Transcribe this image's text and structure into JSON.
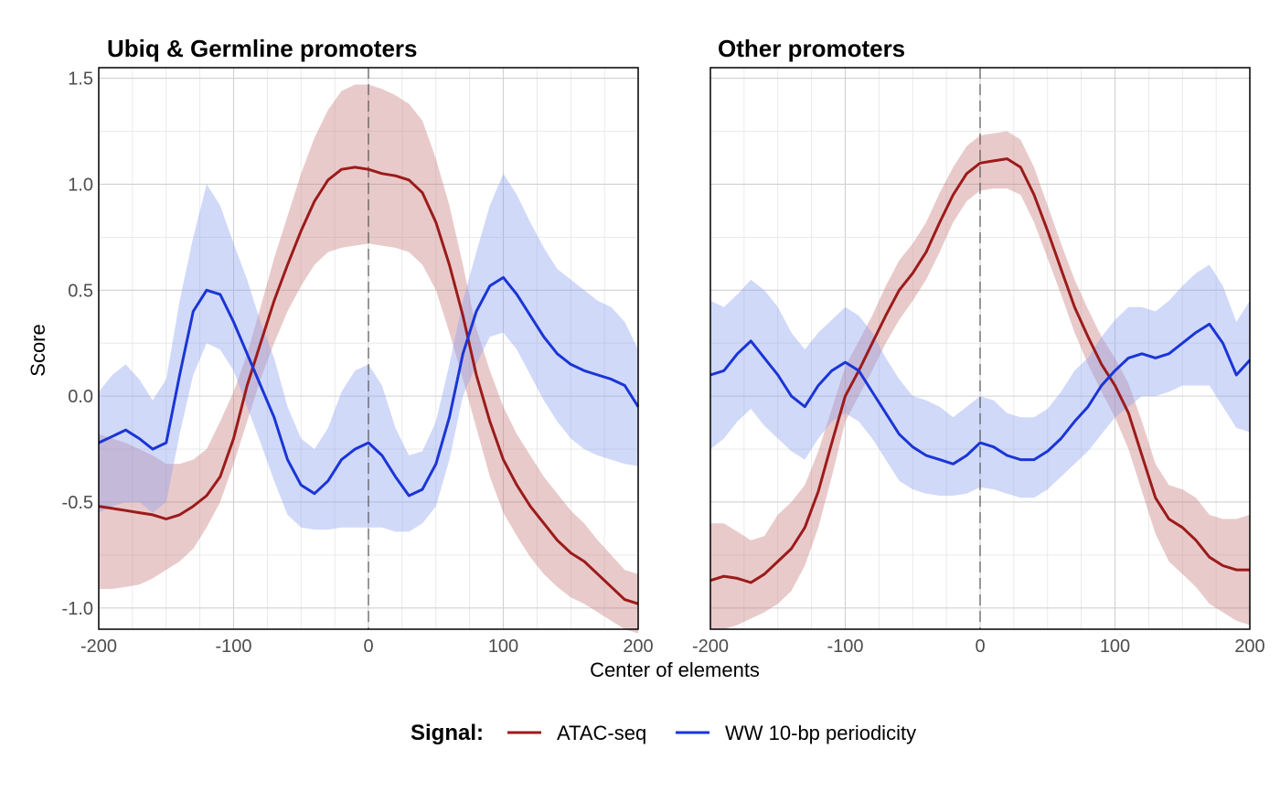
{
  "colors": {
    "atac_line": "#9b1b1b",
    "atac_band": "#c97a7a",
    "ww_line": "#1a35d6",
    "ww_band": "#8da0ef"
  },
  "chart_data": {
    "type": "line",
    "xlabel": "Center of elements",
    "ylabel": "Score",
    "xlim": [
      -200,
      200
    ],
    "ylim": [
      -1.1,
      1.55
    ],
    "x_ticks": [
      -200,
      -100,
      0,
      100,
      200
    ],
    "y_ticks": [
      -1.0,
      -0.5,
      0.0,
      0.5,
      1.0,
      1.5
    ],
    "y_tick_labels": [
      "-1.0",
      "-0.5",
      "0.0",
      "0.5",
      "1.0",
      "1.5"
    ],
    "grid": true,
    "vertical_reference_line": 0,
    "legend": {
      "title": "Signal:",
      "position": "bottom",
      "entries": [
        "ATAC-seq",
        "WW 10-bp periodicity"
      ]
    },
    "panels": [
      {
        "title": "Ubiq & Germline promoters",
        "series": [
          {
            "name": "ATAC-seq",
            "x": [
              -200,
              -190,
              -180,
              -170,
              -160,
              -150,
              -140,
              -130,
              -120,
              -110,
              -100,
              -90,
              -80,
              -70,
              -60,
              -50,
              -40,
              -30,
              -20,
              -10,
              0,
              10,
              20,
              30,
              40,
              50,
              60,
              70,
              80,
              90,
              100,
              110,
              120,
              130,
              140,
              150,
              160,
              170,
              180,
              190,
              200
            ],
            "y": [
              -0.52,
              -0.53,
              -0.54,
              -0.55,
              -0.56,
              -0.58,
              -0.56,
              -0.52,
              -0.47,
              -0.38,
              -0.2,
              0.05,
              0.25,
              0.45,
              0.62,
              0.78,
              0.92,
              1.02,
              1.07,
              1.08,
              1.07,
              1.05,
              1.04,
              1.02,
              0.96,
              0.82,
              0.62,
              0.38,
              0.1,
              -0.12,
              -0.3,
              -0.42,
              -0.52,
              -0.6,
              -0.68,
              -0.74,
              -0.78,
              -0.84,
              -0.9,
              -0.96,
              -0.98
            ],
            "lower": [
              -0.91,
              -0.91,
              -0.9,
              -0.89,
              -0.86,
              -0.82,
              -0.78,
              -0.72,
              -0.62,
              -0.5,
              -0.32,
              -0.12,
              0.08,
              0.25,
              0.4,
              0.52,
              0.62,
              0.68,
              0.7,
              0.71,
              0.72,
              0.71,
              0.7,
              0.68,
              0.62,
              0.5,
              0.3,
              0.08,
              -0.15,
              -0.38,
              -0.55,
              -0.66,
              -0.76,
              -0.84,
              -0.9,
              -0.95,
              -0.98,
              -1.02,
              -1.06,
              -1.1,
              -1.12
            ],
            "upper": [
              -0.18,
              -0.2,
              -0.22,
              -0.25,
              -0.28,
              -0.32,
              -0.32,
              -0.3,
              -0.25,
              -0.12,
              0.02,
              0.2,
              0.42,
              0.65,
              0.85,
              1.05,
              1.22,
              1.35,
              1.44,
              1.47,
              1.47,
              1.45,
              1.42,
              1.38,
              1.3,
              1.12,
              0.9,
              0.62,
              0.32,
              0.12,
              -0.05,
              -0.18,
              -0.28,
              -0.38,
              -0.46,
              -0.54,
              -0.6,
              -0.68,
              -0.75,
              -0.82,
              -0.84
            ]
          },
          {
            "name": "WW 10-bp periodicity",
            "x": [
              -200,
              -190,
              -180,
              -170,
              -160,
              -150,
              -140,
              -130,
              -120,
              -110,
              -100,
              -90,
              -80,
              -70,
              -60,
              -50,
              -40,
              -30,
              -20,
              -10,
              0,
              10,
              20,
              30,
              40,
              50,
              60,
              70,
              80,
              90,
              100,
              110,
              120,
              130,
              140,
              150,
              160,
              170,
              180,
              190,
              200
            ],
            "y": [
              -0.22,
              -0.19,
              -0.16,
              -0.2,
              -0.25,
              -0.22,
              0.1,
              0.4,
              0.5,
              0.48,
              0.35,
              0.2,
              0.05,
              -0.1,
              -0.3,
              -0.42,
              -0.46,
              -0.4,
              -0.3,
              -0.25,
              -0.22,
              -0.28,
              -0.38,
              -0.47,
              -0.44,
              -0.32,
              -0.1,
              0.2,
              0.4,
              0.52,
              0.56,
              0.48,
              0.38,
              0.28,
              0.2,
              0.15,
              0.12,
              0.1,
              0.08,
              0.05,
              -0.05
            ],
            "lower": [
              -0.55,
              -0.52,
              -0.5,
              -0.5,
              -0.55,
              -0.5,
              -0.18,
              0.1,
              0.25,
              0.22,
              0.12,
              -0.05,
              -0.22,
              -0.4,
              -0.56,
              -0.62,
              -0.63,
              -0.63,
              -0.62,
              -0.62,
              -0.62,
              -0.62,
              -0.64,
              -0.64,
              -0.6,
              -0.52,
              -0.3,
              0.0,
              0.15,
              0.28,
              0.3,
              0.22,
              0.1,
              -0.02,
              -0.12,
              -0.2,
              -0.25,
              -0.28,
              -0.3,
              -0.32,
              -0.33
            ],
            "upper": [
              0.02,
              0.1,
              0.15,
              0.08,
              -0.02,
              0.08,
              0.45,
              0.75,
              1.0,
              0.9,
              0.72,
              0.55,
              0.35,
              0.18,
              -0.05,
              -0.2,
              -0.25,
              -0.15,
              0.02,
              0.12,
              0.15,
              0.05,
              -0.15,
              -0.28,
              -0.26,
              -0.12,
              0.15,
              0.45,
              0.68,
              0.9,
              1.05,
              0.95,
              0.82,
              0.7,
              0.6,
              0.55,
              0.5,
              0.45,
              0.42,
              0.35,
              0.22
            ]
          }
        ]
      },
      {
        "title": "Other promoters",
        "series": [
          {
            "name": "ATAC-seq",
            "x": [
              -200,
              -190,
              -180,
              -170,
              -160,
              -150,
              -140,
              -130,
              -120,
              -110,
              -100,
              -90,
              -80,
              -70,
              -60,
              -50,
              -40,
              -30,
              -20,
              -10,
              0,
              10,
              20,
              30,
              40,
              50,
              60,
              70,
              80,
              90,
              100,
              110,
              120,
              130,
              140,
              150,
              160,
              170,
              180,
              190,
              200
            ],
            "y": [
              -0.87,
              -0.85,
              -0.86,
              -0.88,
              -0.84,
              -0.78,
              -0.72,
              -0.62,
              -0.45,
              -0.22,
              0.0,
              0.12,
              0.25,
              0.38,
              0.5,
              0.58,
              0.68,
              0.82,
              0.95,
              1.05,
              1.1,
              1.11,
              1.12,
              1.08,
              0.95,
              0.78,
              0.6,
              0.42,
              0.28,
              0.15,
              0.05,
              -0.08,
              -0.28,
              -0.48,
              -0.58,
              -0.62,
              -0.68,
              -0.76,
              -0.8,
              -0.82,
              -0.82
            ],
            "lower": [
              -1.1,
              -1.1,
              -1.08,
              -1.05,
              -1.02,
              -0.98,
              -0.92,
              -0.8,
              -0.62,
              -0.38,
              -0.12,
              0.0,
              0.12,
              0.25,
              0.36,
              0.45,
              0.55,
              0.68,
              0.82,
              0.92,
              0.97,
              0.98,
              0.98,
              0.95,
              0.82,
              0.65,
              0.48,
              0.3,
              0.15,
              0.02,
              -0.1,
              -0.25,
              -0.45,
              -0.65,
              -0.78,
              -0.84,
              -0.9,
              -0.98,
              -1.02,
              -1.06,
              -1.08
            ],
            "upper": [
              -0.6,
              -0.6,
              -0.64,
              -0.68,
              -0.66,
              -0.56,
              -0.5,
              -0.42,
              -0.26,
              -0.06,
              0.14,
              0.26,
              0.38,
              0.52,
              0.64,
              0.72,
              0.82,
              0.96,
              1.08,
              1.18,
              1.23,
              1.24,
              1.25,
              1.21,
              1.08,
              0.9,
              0.72,
              0.55,
              0.41,
              0.28,
              0.18,
              0.06,
              -0.12,
              -0.32,
              -0.42,
              -0.44,
              -0.48,
              -0.56,
              -0.58,
              -0.58,
              -0.56
            ]
          },
          {
            "name": "WW 10-bp periodicity",
            "x": [
              -200,
              -190,
              -180,
              -170,
              -160,
              -150,
              -140,
              -130,
              -120,
              -110,
              -100,
              -90,
              -80,
              -70,
              -60,
              -50,
              -40,
              -30,
              -20,
              -10,
              0,
              10,
              20,
              30,
              40,
              50,
              60,
              70,
              80,
              90,
              100,
              110,
              120,
              130,
              140,
              150,
              160,
              170,
              180,
              190,
              200
            ],
            "y": [
              0.1,
              0.12,
              0.2,
              0.26,
              0.18,
              0.1,
              0.0,
              -0.05,
              0.05,
              0.12,
              0.16,
              0.12,
              0.02,
              -0.08,
              -0.18,
              -0.24,
              -0.28,
              -0.3,
              -0.32,
              -0.28,
              -0.22,
              -0.24,
              -0.28,
              -0.3,
              -0.3,
              -0.26,
              -0.2,
              -0.12,
              -0.05,
              0.05,
              0.12,
              0.18,
              0.2,
              0.18,
              0.2,
              0.25,
              0.3,
              0.34,
              0.25,
              0.1,
              0.17
            ],
            "lower": [
              -0.25,
              -0.2,
              -0.12,
              -0.06,
              -0.14,
              -0.2,
              -0.26,
              -0.3,
              -0.2,
              -0.12,
              -0.08,
              -0.12,
              -0.2,
              -0.3,
              -0.4,
              -0.44,
              -0.46,
              -0.47,
              -0.47,
              -0.46,
              -0.43,
              -0.44,
              -0.46,
              -0.48,
              -0.48,
              -0.44,
              -0.38,
              -0.32,
              -0.26,
              -0.18,
              -0.1,
              -0.05,
              0.0,
              0.0,
              0.02,
              0.05,
              0.05,
              0.05,
              -0.05,
              -0.15,
              -0.17
            ],
            "upper": [
              0.45,
              0.42,
              0.48,
              0.55,
              0.5,
              0.42,
              0.3,
              0.22,
              0.3,
              0.36,
              0.42,
              0.38,
              0.3,
              0.18,
              0.08,
              0.0,
              -0.02,
              -0.05,
              -0.1,
              -0.05,
              0.0,
              -0.02,
              -0.08,
              -0.1,
              -0.1,
              -0.06,
              0.02,
              0.12,
              0.18,
              0.28,
              0.36,
              0.42,
              0.42,
              0.4,
              0.45,
              0.52,
              0.58,
              0.62,
              0.52,
              0.35,
              0.45
            ]
          }
        ]
      }
    ]
  }
}
